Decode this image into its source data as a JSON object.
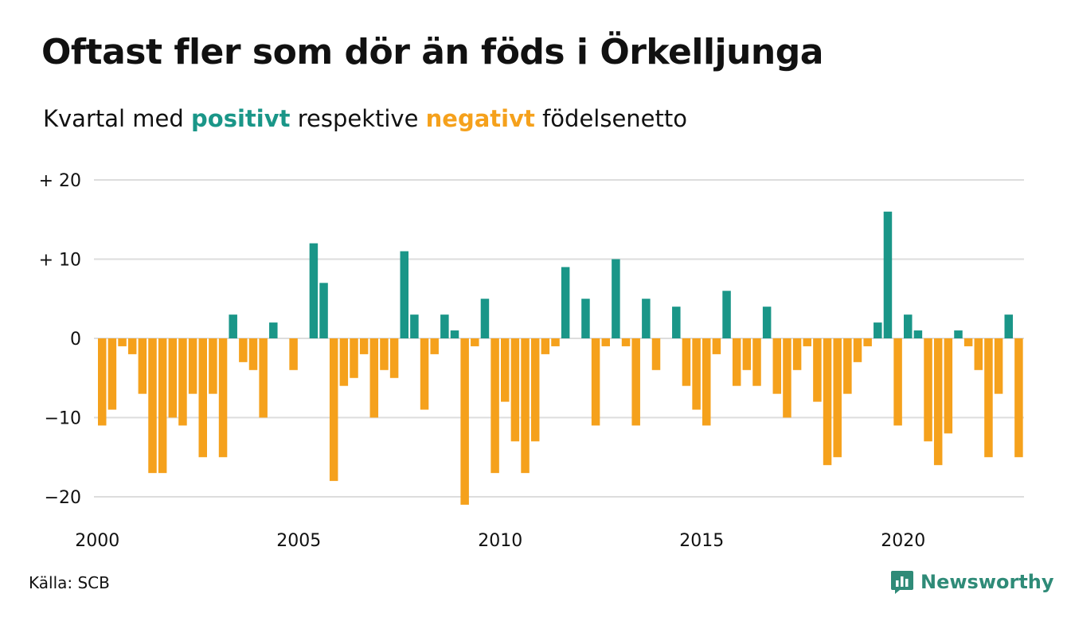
{
  "title": "Oftast fler som dör än föds i Örkelljunga",
  "subtitle": {
    "prefix": "Kvartal med ",
    "positive_word": "positivt",
    "middle": " respektive ",
    "negative_word": "negativt",
    "suffix": " födelsenetto"
  },
  "source": "Källa: SCB",
  "brand": {
    "name": "Newsworthy",
    "icon": "newsworthy-logo-icon"
  },
  "colors": {
    "positive": "#1a9688",
    "negative": "#f5a11c",
    "grid": "#dddddd",
    "brand": "#2f8b78"
  },
  "chart_data": {
    "type": "bar",
    "x_start_year": 2000,
    "x_tick_labels": [
      "2000",
      "2005",
      "2010",
      "2015",
      "2020"
    ],
    "y_tick_labels": [
      {
        "value": 20,
        "label": "+ 20"
      },
      {
        "value": 10,
        "label": "+ 10"
      },
      {
        "value": 0,
        "label": "0"
      },
      {
        "value": -10,
        "label": "−10"
      },
      {
        "value": -20,
        "label": "−20"
      }
    ],
    "ylim": [
      -21,
      20
    ],
    "grid": true,
    "values": [
      -11,
      -9,
      -1,
      -2,
      -7,
      -17,
      -17,
      -10,
      -11,
      -7,
      -15,
      -7,
      -15,
      3,
      -3,
      -4,
      -10,
      2,
      0,
      -4,
      0,
      12,
      7,
      -18,
      -6,
      -5,
      -2,
      -10,
      -4,
      -5,
      11,
      3,
      -9,
      -2,
      3,
      1,
      -21,
      -1,
      5,
      -17,
      -8,
      -13,
      -17,
      -13,
      -2,
      -1,
      9,
      0,
      5,
      -11,
      -1,
      10,
      -1,
      -11,
      5,
      -4,
      0,
      4,
      -6,
      -9,
      -11,
      -2,
      6,
      -6,
      -4,
      -6,
      4,
      -7,
      -10,
      -4,
      -1,
      -8,
      -16,
      -15,
      -7,
      -3,
      -1,
      2,
      16,
      -11,
      3,
      1,
      -13,
      -16,
      -12,
      1,
      -1,
      -4,
      -15,
      -7,
      3,
      -15
    ]
  }
}
